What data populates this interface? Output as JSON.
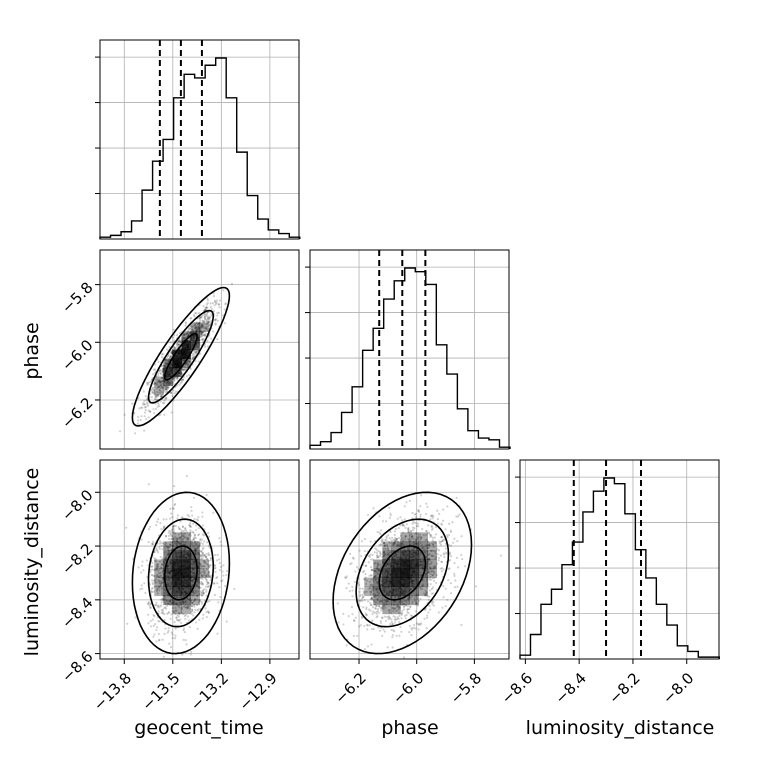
{
  "chart_data": {
    "type": "corner",
    "parameters": [
      "geocent_time",
      "phase",
      "luminosity_distance"
    ],
    "ranges": {
      "geocent_time": [
        -13.95,
        -12.72
      ],
      "phase": [
        -6.37,
        -5.68
      ],
      "luminosity_distance": [
        -8.62,
        -7.88
      ]
    },
    "ticks": {
      "geocent_time": [
        "−13.8",
        "−13.5",
        "−13.2",
        "−12.9"
      ],
      "phase": [
        "−6.2",
        "−6.0",
        "−5.8"
      ],
      "luminosity_distance": [
        "−8.6",
        "−8.4",
        "−8.2",
        "−8.0"
      ]
    },
    "tick_values": {
      "geocent_time": [
        -13.8,
        -13.5,
        -13.2,
        -12.9
      ],
      "phase": [
        -6.2,
        -6.0,
        -5.8
      ],
      "luminosity_distance": [
        -8.6,
        -8.4,
        -8.2,
        -8.0
      ]
    },
    "quantiles": {
      "geocent_time": [
        -13.58,
        -13.45,
        -13.32
      ],
      "phase": [
        -6.13,
        -6.05,
        -5.97
      ],
      "luminosity_distance": [
        -8.42,
        -8.3,
        -8.17
      ]
    },
    "histograms": {
      "geocent_time": {
        "bin_start": -13.95,
        "bin_width": 0.065,
        "counts": [
          0.01,
          0.02,
          0.04,
          0.1,
          0.27,
          0.43,
          0.55,
          0.78,
          0.91,
          0.89,
          0.96,
          1.0,
          0.78,
          0.48,
          0.24,
          0.11,
          0.05,
          0.03,
          0.01
        ]
      },
      "phase": {
        "bin_start": -6.37,
        "bin_width": 0.0365,
        "counts": [
          0.02,
          0.04,
          0.09,
          0.2,
          0.34,
          0.54,
          0.66,
          0.82,
          0.92,
          0.99,
          0.97,
          0.9,
          0.57,
          0.41,
          0.22,
          0.1,
          0.06,
          0.05,
          0.01
        ]
      },
      "luminosity_distance": {
        "bin_start": -8.62,
        "bin_width": 0.039,
        "counts": [
          0.02,
          0.13,
          0.29,
          0.37,
          0.5,
          0.62,
          0.78,
          0.89,
          0.96,
          0.93,
          0.77,
          0.58,
          0.43,
          0.29,
          0.18,
          0.07,
          0.04,
          0.01,
          0.01
        ]
      }
    },
    "pairs": [
      {
        "x": "geocent_time",
        "y": "phase",
        "center": [
          -13.45,
          -6.05
        ],
        "sd": [
          0.1,
          0.08
        ],
        "corr": 0.88,
        "contour_levels": [
          1.0,
          2.0,
          3.0
        ]
      },
      {
        "x": "geocent_time",
        "y": "luminosity_distance",
        "center": [
          -13.45,
          -8.3
        ],
        "sd": [
          0.1,
          0.1
        ],
        "corr": 0.12,
        "contour_levels": [
          1.0,
          2.0,
          3.0
        ]
      },
      {
        "x": "phase",
        "y": "luminosity_distance",
        "center": [
          -6.05,
          -8.3
        ],
        "sd": [
          0.08,
          0.1
        ],
        "corr": 0.35,
        "contour_levels": [
          1.0,
          2.0,
          3.0
        ]
      }
    ],
    "grid": true,
    "legend": "none"
  },
  "labels": {
    "x_geocent": "geocent_time",
    "x_phase": "phase",
    "x_lumdist": "luminosity_distance",
    "y_phase": "phase",
    "y_lumdist": "luminosity_distance"
  }
}
